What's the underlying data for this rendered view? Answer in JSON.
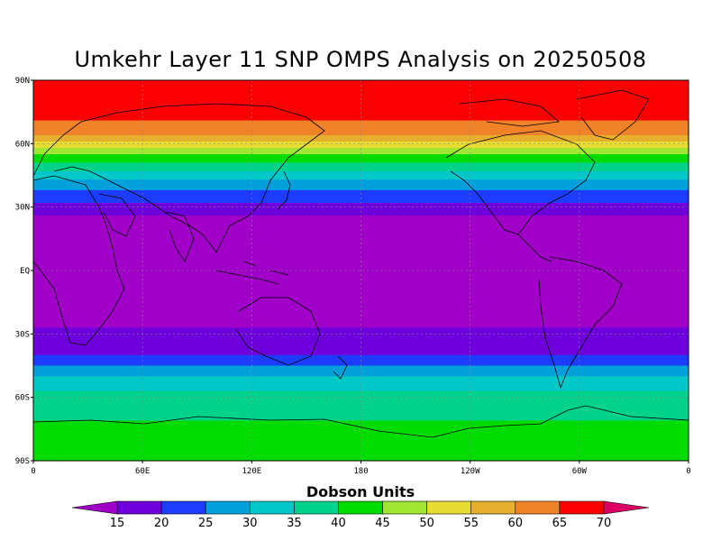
{
  "title": "Umkehr Layer 11 SNP OMPS Analysis on 20250508",
  "colorbar": {
    "label": "Dobson Units",
    "ticks": [
      "15",
      "20",
      "25",
      "30",
      "35",
      "40",
      "45",
      "50",
      "55",
      "60",
      "65",
      "70"
    ],
    "colors": [
      "#a000c8",
      "#6e00dc",
      "#1e3cff",
      "#00a0dc",
      "#00c8c8",
      "#00d28c",
      "#00dc00",
      "#a0e632",
      "#e6dc32",
      "#e6af2d",
      "#f08228",
      "#fa0000",
      "#dc0064"
    ]
  },
  "axes": {
    "lat_labels": [
      "90N",
      "60N",
      "30N",
      "EQ",
      "30S",
      "60S",
      "90S"
    ],
    "lon_labels": [
      "0",
      "60E",
      "120E",
      "180",
      "120W",
      "60W",
      "0"
    ]
  },
  "chart_data": {
    "type": "heatmap",
    "title": "Umkehr Layer 11 SNP OMPS Analysis on 20250508",
    "variable": "Dobson Units",
    "xlim": [
      0,
      360
    ],
    "ylim": [
      -90,
      90
    ],
    "grid": true,
    "levels": [
      15,
      20,
      25,
      30,
      35,
      40,
      45,
      50,
      55,
      60,
      65,
      70
    ],
    "zonal_profile": [
      {
        "lat": 85,
        "value": 68
      },
      {
        "lat": 75,
        "value": 67
      },
      {
        "lat": 65,
        "value": 62
      },
      {
        "lat": 55,
        "value": 45
      },
      {
        "lat": 45,
        "value": 32
      },
      {
        "lat": 35,
        "value": 22
      },
      {
        "lat": 25,
        "value": 14
      },
      {
        "lat": 0,
        "value": 12
      },
      {
        "lat": -25,
        "value": 14
      },
      {
        "lat": -40,
        "value": 20
      },
      {
        "lat": -50,
        "value": 30
      },
      {
        "lat": -60,
        "value": 37
      },
      {
        "lat": -75,
        "value": 41
      },
      {
        "lat": -90,
        "value": 42
      }
    ]
  }
}
